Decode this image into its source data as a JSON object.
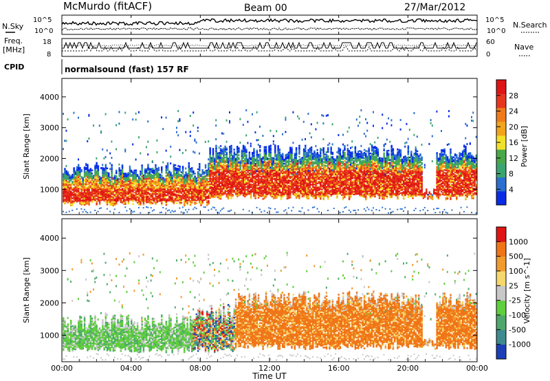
{
  "header": {
    "station": "McMurdo (fitACF)",
    "beam": "Beam 00",
    "date": "27/Mar/2012"
  },
  "side_labels": {
    "nsky": "N.Sky",
    "freq": "Freq.",
    "freq_unit": "[MHz]",
    "cpid": "CPID",
    "nsearch": "N.Search",
    "nave": "Nave",
    "freq_ticks": [
      "18",
      "8"
    ],
    "nave_ticks": [
      "60",
      "0"
    ],
    "noise_left_ticks": [
      "10^5",
      "10^0"
    ],
    "noise_right_ticks": [
      "10^5",
      "10^0"
    ]
  },
  "cpid_text": "normalsound (fast) 157 RF",
  "x_axis": {
    "label": "Time UT",
    "ticks": [
      "00:00",
      "04:00",
      "08:00",
      "12:00",
      "16:00",
      "20:00",
      "00:00"
    ],
    "hours": [
      0,
      4,
      8,
      12,
      16,
      20,
      24
    ]
  },
  "chart_data": [
    {
      "type": "heatmap",
      "parameter": "power",
      "ylabel": "Slant Range [km]",
      "yticks": [
        1000,
        2000,
        3000,
        4000
      ],
      "ylim": [
        180,
        4600
      ],
      "xlim_hours": [
        0,
        24
      ],
      "colorbar": {
        "label": "Power [dB]",
        "ticks": [
          "28",
          "24",
          "20",
          "16",
          "12",
          "8",
          "4"
        ],
        "range": [
          0,
          30
        ],
        "colors": [
          "#0a2ce6",
          "#2b6fd0",
          "#3aa56f",
          "#4aa84a",
          "#f2e12a",
          "#f2a51c",
          "#f07a1a",
          "#e8361e",
          "#e01414"
        ]
      },
      "description_bands": [
        {
          "start_h": 0.0,
          "end_h": 8.5,
          "core_range_km": [
            600,
            1000
          ],
          "upper_range_km": [
            1100,
            1500
          ]
        },
        {
          "start_h": 8.5,
          "end_h": 24.0,
          "core_range_km": [
            800,
            1600
          ],
          "upper_range_km": [
            1300,
            2100
          ]
        }
      ]
    },
    {
      "type": "heatmap",
      "parameter": "velocity",
      "ylabel": "Slant Range [km]",
      "yticks": [
        1000,
        2000,
        3000,
        4000
      ],
      "ylim": [
        180,
        4600
      ],
      "xlim_hours": [
        0,
        24
      ],
      "colorbar": {
        "label": "Velocity [m s^-1]",
        "ticks": [
          "1000",
          "500",
          "100",
          "25",
          "-25",
          "-100",
          "-500",
          "-1000"
        ],
        "colors": [
          "#1c3fb8",
          "#3d8a8f",
          "#4fa86b",
          "#5fcf3d",
          "#c8c8c8",
          "#f5d76b",
          "#f29a2e",
          "#f07518",
          "#e01414"
        ]
      },
      "description_bands": [
        {
          "start_h": 0.0,
          "end_h": 7.5,
          "dominant": "green (positive)",
          "range_km": [
            600,
            1300
          ]
        },
        {
          "start_h": 7.5,
          "end_h": 10.0,
          "dominant": "mixed",
          "range_km": [
            600,
            1600
          ]
        },
        {
          "start_h": 10.0,
          "end_h": 24.0,
          "dominant": "orange (negative)",
          "range_km": [
            700,
            2000
          ]
        }
      ]
    }
  ]
}
